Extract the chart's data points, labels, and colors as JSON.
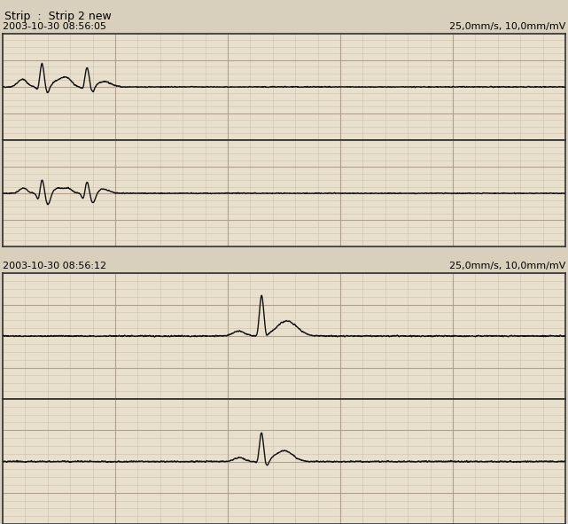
{
  "title": "Strip  :  Strip 2 new",
  "panel1_timestamp": "2003-10-30 08:56:05",
  "panel1_speed": "25,0mm/s, 10,0mm/mV",
  "panel2_timestamp": "2003-10-30 08:56:12",
  "panel2_speed": "25,0mm/s, 10,0mm/mV",
  "bg_color": "#e8e0cc",
  "grid_major_color": "#b0a090",
  "grid_minor_color": "#ccc0aa",
  "line_color": "#111111",
  "fig_bg": "#d8d0bc",
  "panel_border_color": "#333333",
  "title_fontsize": 9,
  "label_fontsize": 8
}
